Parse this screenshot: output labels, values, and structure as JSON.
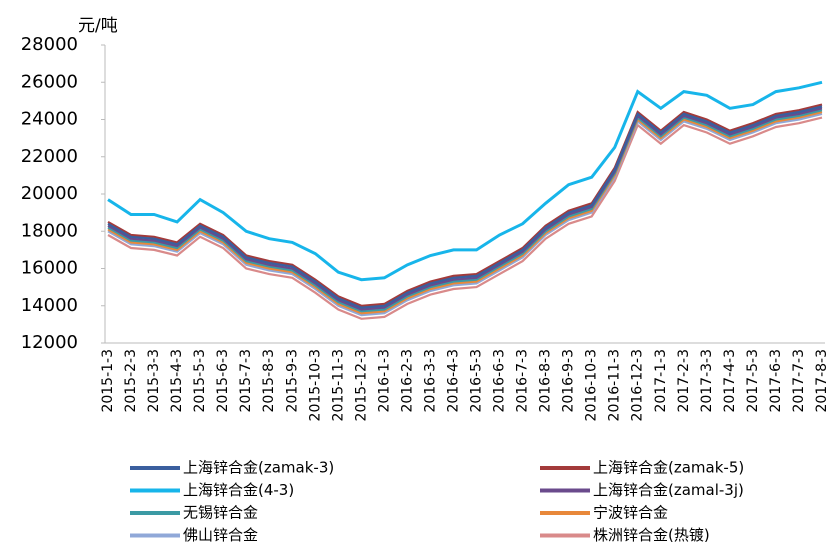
{
  "chart_data": {
    "type": "line",
    "y_label": "元/吨",
    "categories": [
      "2015-1-3",
      "2015-2-3",
      "2015-3-3",
      "2015-4-3",
      "2015-5-3",
      "2015-6-3",
      "2015-7-3",
      "2015-8-3",
      "2015-9-3",
      "2015-10-3",
      "2015-11-3",
      "2015-12-3",
      "2016-1-3",
      "2016-2-3",
      "2016-3-3",
      "2016-4-3",
      "2016-5-3",
      "2016-6-3",
      "2016-7-3",
      "2016-8-3",
      "2016-9-3",
      "2016-10-3",
      "2016-11-3",
      "2016-12-3",
      "2017-1-3",
      "2017-2-3",
      "2017-3-3",
      "2017-4-3",
      "2017-5-3",
      "2017-6-3",
      "2017-7-3",
      "2017-8-3"
    ],
    "series": [
      {
        "name": "上海锌合金(zamak-3)",
        "color": "#3a5f9e",
        "values": [
          18400,
          17700,
          17600,
          17300,
          18300,
          17700,
          16600,
          16300,
          16100,
          15300,
          14400,
          13900,
          14000,
          14700,
          15200,
          15500,
          15600,
          16300,
          17000,
          18200,
          19000,
          19400,
          21300,
          24300,
          23300,
          24300,
          23900,
          23300,
          23700,
          24200,
          24400,
          24700
        ]
      },
      {
        "name": "上海锌合金(zamak-5)",
        "color": "#a33a3a",
        "values": [
          18500,
          17800,
          17700,
          17400,
          18400,
          17800,
          16700,
          16400,
          16200,
          15400,
          14500,
          14000,
          14100,
          14800,
          15300,
          15600,
          15700,
          16400,
          17100,
          18300,
          19100,
          19500,
          21400,
          24400,
          23400,
          24400,
          24000,
          23400,
          23800,
          24300,
          24500,
          24800
        ]
      },
      {
        "name": "上海锌合金(4-3)",
        "color": "#17b5ea",
        "values": [
          19700,
          18900,
          18900,
          18500,
          19700,
          19000,
          18000,
          17600,
          17400,
          16800,
          15800,
          15400,
          15500,
          16200,
          16700,
          17000,
          17000,
          17800,
          18400,
          19500,
          20500,
          20900,
          22500,
          25500,
          24600,
          25500,
          25300,
          24600,
          24800,
          25500,
          25700,
          26000
        ]
      },
      {
        "name": "上海锌合金(zamal-3j)",
        "color": "#6a4a8c",
        "values": [
          18300,
          17600,
          17500,
          17200,
          18200,
          17600,
          16500,
          16200,
          16000,
          15200,
          14300,
          13800,
          13900,
          14600,
          15100,
          15400,
          15500,
          16200,
          16900,
          18100,
          18900,
          19300,
          21200,
          24200,
          23200,
          24200,
          23800,
          23200,
          23600,
          24100,
          24300,
          24600
        ]
      },
      {
        "name": "无锡锌合金",
        "color": "#3b9aa4",
        "values": [
          18200,
          17500,
          17400,
          17100,
          18100,
          17500,
          16400,
          16100,
          15900,
          15100,
          14200,
          13700,
          13800,
          14500,
          15000,
          15300,
          15400,
          16100,
          16800,
          18000,
          18800,
          19200,
          21100,
          24100,
          23100,
          24100,
          23700,
          23100,
          23500,
          24000,
          24200,
          24500
        ]
      },
      {
        "name": "宁波锌合金",
        "color": "#e8883a",
        "values": [
          18100,
          17400,
          17300,
          17000,
          18000,
          17400,
          16300,
          16000,
          15800,
          15000,
          14100,
          13600,
          13700,
          14400,
          14900,
          15200,
          15300,
          16000,
          16700,
          17900,
          18700,
          19100,
          21000,
          24000,
          23000,
          24000,
          23600,
          23000,
          23400,
          23900,
          24100,
          24400
        ]
      },
      {
        "name": "佛山锌合金",
        "color": "#90a8d8",
        "values": [
          18000,
          17300,
          17200,
          16900,
          17900,
          17300,
          16200,
          15900,
          15700,
          14900,
          14000,
          13500,
          13600,
          14300,
          14800,
          15100,
          15200,
          15900,
          16600,
          17800,
          18600,
          19000,
          20900,
          23900,
          22900,
          23900,
          23500,
          22900,
          23300,
          23800,
          24000,
          24300
        ]
      },
      {
        "name": "株洲锌合金(热镀)",
        "color": "#d98a8a",
        "values": [
          17800,
          17100,
          17000,
          16700,
          17700,
          17100,
          16000,
          15700,
          15500,
          14700,
          13800,
          13300,
          13400,
          14100,
          14600,
          14900,
          15000,
          15700,
          16400,
          17600,
          18400,
          18800,
          20700,
          23700,
          22700,
          23700,
          23300,
          22700,
          23100,
          23600,
          23800,
          24100
        ]
      }
    ],
    "ylim": [
      12000,
      28000
    ],
    "yticks": [
      12000,
      14000,
      16000,
      18000,
      20000,
      22000,
      24000,
      26000,
      28000
    ],
    "grid": false
  }
}
